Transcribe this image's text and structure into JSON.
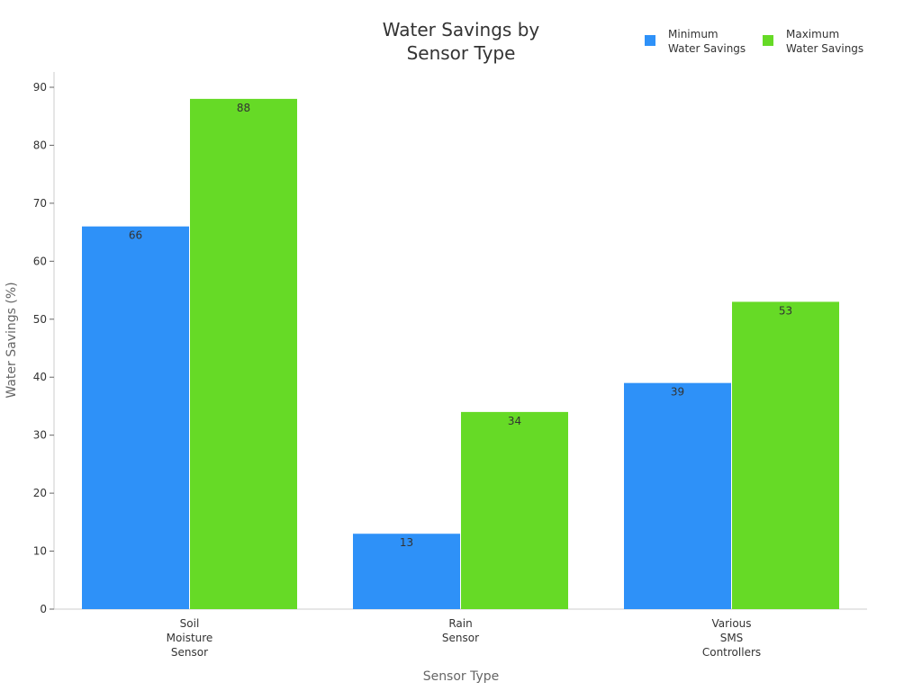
{
  "chart_data": {
    "type": "bar",
    "title": [
      "Water Savings by",
      "Sensor Type"
    ],
    "xlabel": "Sensor Type",
    "ylabel": "Water Savings (%)",
    "categories": [
      [
        "Soil",
        "Moisture",
        "Sensor"
      ],
      [
        "Rain",
        "Sensor"
      ],
      [
        "Various",
        "SMS",
        "Controllers"
      ]
    ],
    "series": [
      {
        "name": [
          "Minimum",
          "Water Savings"
        ],
        "color": "#2e91f8",
        "values": [
          66,
          13,
          39
        ]
      },
      {
        "name": [
          "Maximum",
          "Water Savings"
        ],
        "color": "#66da26",
        "values": [
          88,
          34,
          53
        ]
      }
    ],
    "ylim": [
      0,
      92.5
    ],
    "yticks": [
      0,
      10,
      20,
      30,
      40,
      50,
      60,
      70,
      80,
      90
    ],
    "grid": false,
    "legend": "top-right",
    "data_labels": true
  }
}
